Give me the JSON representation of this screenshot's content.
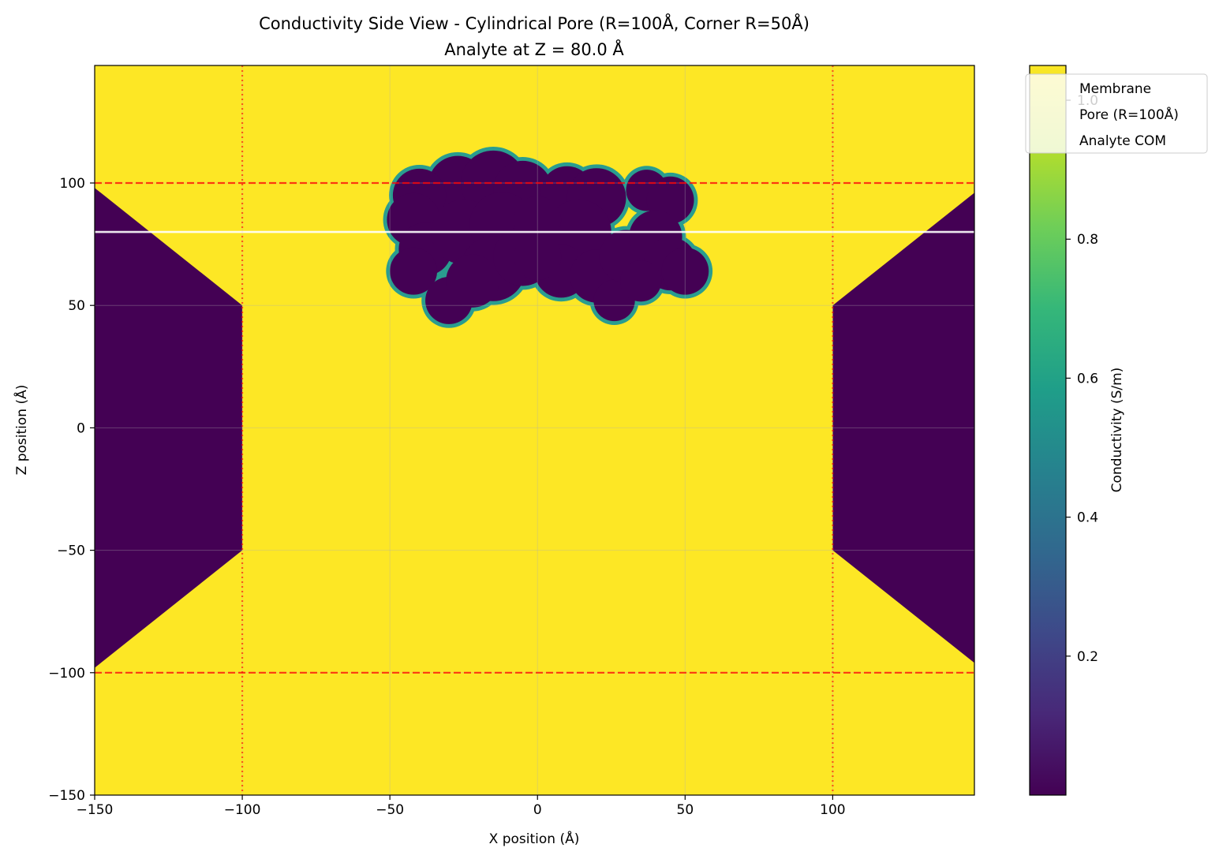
{
  "chart_data": {
    "type": "heatmap",
    "title": "Conductivity Side View - Cylindrical Pore (R=100Å, Corner R=50Å)",
    "subtitle": "Analyte at Z = 80.0 Å",
    "xlabel": "X position (Å)",
    "ylabel": "Z position (Å)",
    "xlim": [
      -150,
      148
    ],
    "ylim": [
      -150,
      148
    ],
    "xticks": [
      -150,
      -100,
      -50,
      0,
      50,
      100
    ],
    "yticks": [
      -150,
      -100,
      -50,
      0,
      50,
      100
    ],
    "xtick_labels": [
      "−150",
      "−100",
      "−50",
      "0",
      "50",
      "100"
    ],
    "ytick_labels": [
      "−150",
      "−100",
      "−50",
      "0",
      "50",
      "100"
    ],
    "grid": true,
    "colormap": "viridis",
    "colorbar": {
      "label": "Conductivity (S/m)",
      "range": [
        0.0,
        1.05
      ],
      "ticks": [
        0.2,
        0.4,
        0.6,
        0.8,
        1.0
      ],
      "tick_labels": [
        "0.2",
        "0.4",
        "0.6",
        "0.8",
        "1.0"
      ]
    },
    "legend": {
      "placement": "top-right",
      "entries": [
        "Membrane",
        "Pore (R=100Å)",
        "Analyte COM"
      ]
    },
    "pore": {
      "radius": 100,
      "corner_radius": 50,
      "membrane_top": 100,
      "membrane_bottom": -100
    },
    "analyte_z": 80.0,
    "annotations": {
      "membrane_lines_z": [
        100,
        -100
      ],
      "membrane_line_color": "#ff0000",
      "pore_lines_x": [
        -100,
        100
      ],
      "pore_line_color": "#ff0000",
      "analyte_line_color": "#ffffff"
    },
    "analyte_blobs": [
      {
        "x": -27,
        "z": 99,
        "r": 10
      },
      {
        "x": -15,
        "z": 100,
        "r": 11
      },
      {
        "x": -5,
        "z": 97,
        "r": 10
      },
      {
        "x": -40,
        "z": 95,
        "r": 9
      },
      {
        "x": -42,
        "z": 85,
        "r": 9
      },
      {
        "x": -38,
        "z": 73,
        "r": 9
      },
      {
        "x": -42,
        "z": 64,
        "r": 8
      },
      {
        "x": -30,
        "z": 52,
        "r": 8
      },
      {
        "x": -25,
        "z": 80,
        "r": 11
      },
      {
        "x": -12,
        "z": 83,
        "r": 11
      },
      {
        "x": -15,
        "z": 65,
        "r": 11
      },
      {
        "x": -5,
        "z": 70,
        "r": 10
      },
      {
        "x": -22,
        "z": 60,
        "r": 9
      },
      {
        "x": 10,
        "z": 96,
        "r": 9
      },
      {
        "x": 20,
        "z": 94,
        "r": 10
      },
      {
        "x": 14,
        "z": 80,
        "r": 11
      },
      {
        "x": 8,
        "z": 64,
        "r": 9
      },
      {
        "x": 20,
        "z": 62,
        "r": 9
      },
      {
        "x": 26,
        "z": 52,
        "r": 7
      },
      {
        "x": 30,
        "z": 70,
        "r": 9
      },
      {
        "x": 37,
        "z": 97,
        "r": 7
      },
      {
        "x": 45,
        "z": 93,
        "r": 8
      },
      {
        "x": 40,
        "z": 78,
        "r": 9
      },
      {
        "x": 45,
        "z": 67,
        "r": 9
      },
      {
        "x": 50,
        "z": 64,
        "r": 8
      },
      {
        "x": 35,
        "z": 60,
        "r": 7
      },
      {
        "x": 0,
        "z": 85,
        "r": 8
      },
      {
        "x": 0,
        "z": 70,
        "r": 8
      }
    ],
    "colors": {
      "viridis": [
        "#440154",
        "#482878",
        "#3e4989",
        "#31688e",
        "#26828e",
        "#1f9e89",
        "#35b779",
        "#6ece58",
        "#b5de2b",
        "#fde725"
      ],
      "conducting": "#fde725",
      "insulating": "#440154"
    }
  }
}
